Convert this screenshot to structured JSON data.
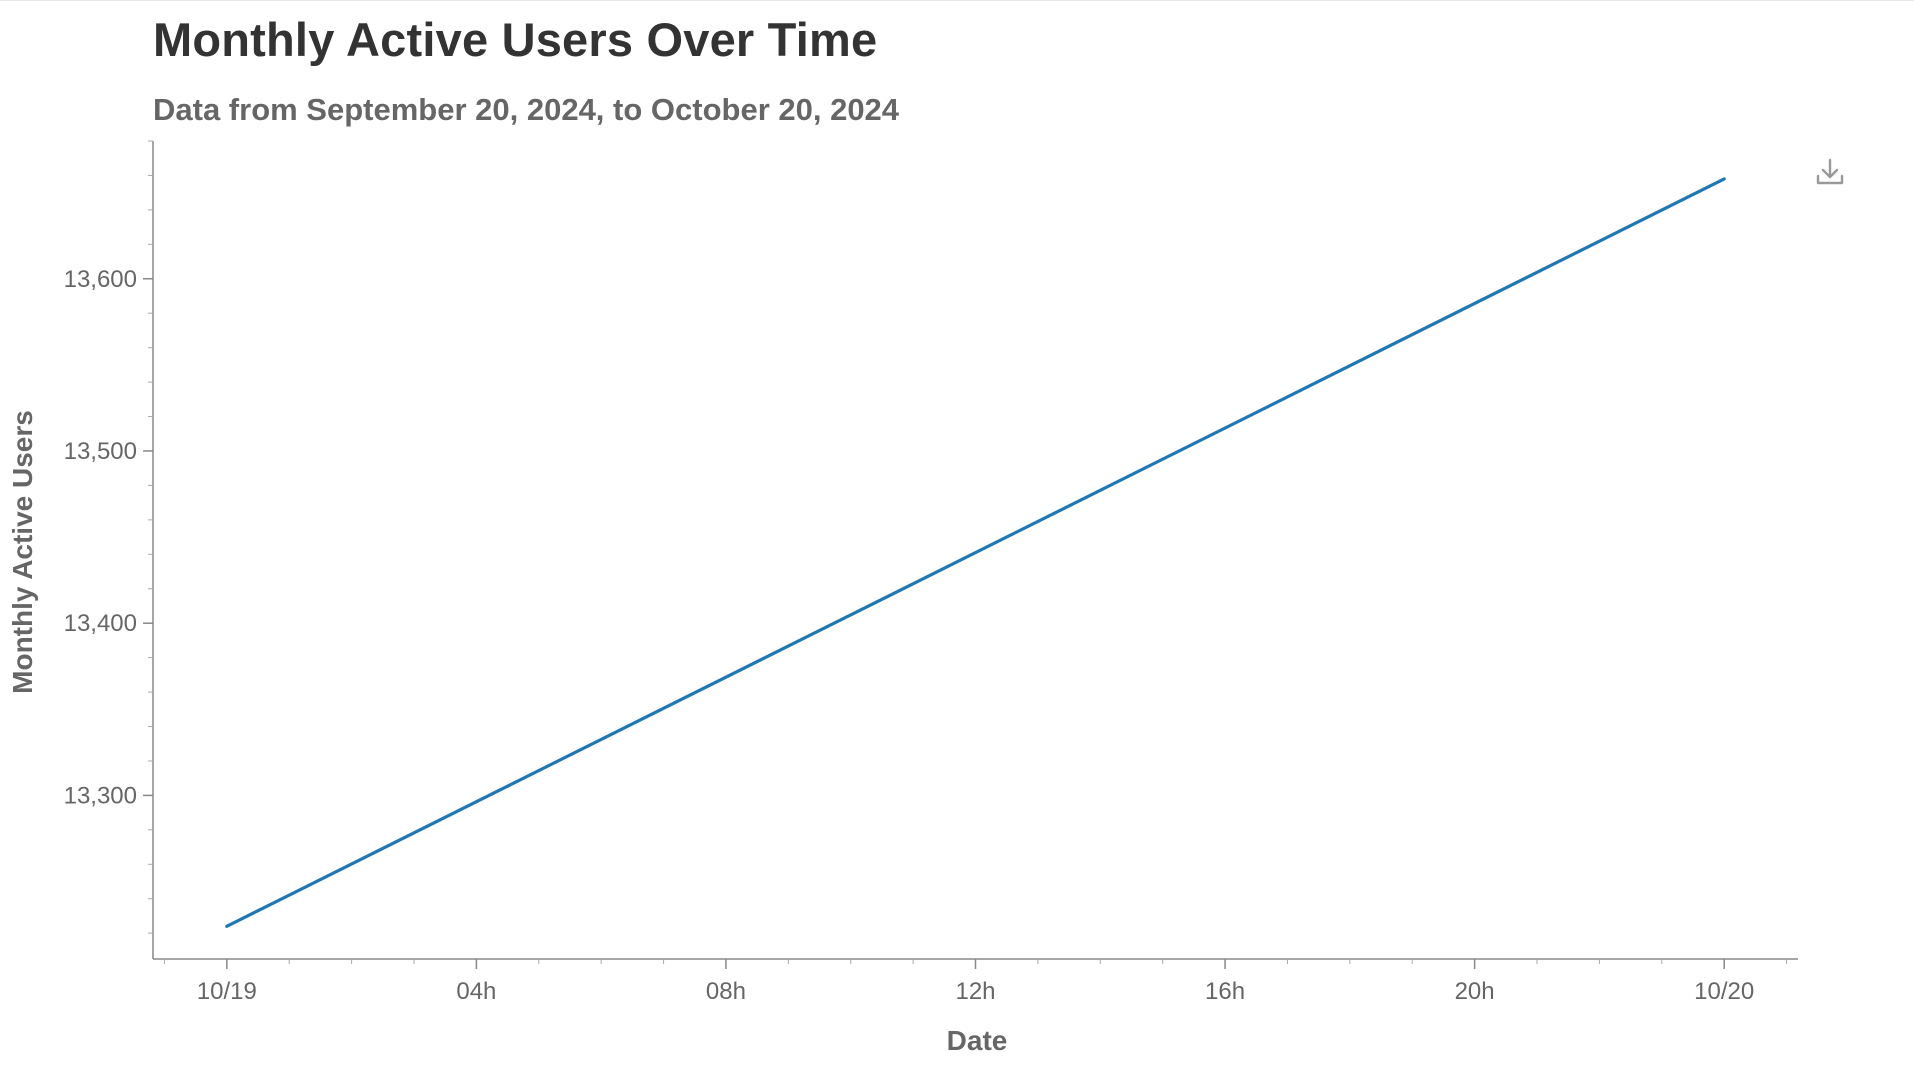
{
  "chart_data": {
    "type": "line",
    "title": "Monthly Active Users Over Time",
    "subtitle": "Data from September 20, 2024, to October 20, 2024",
    "xlabel": "Date",
    "ylabel": "Monthly Active Users",
    "x_tick_labels": [
      "10/19",
      "04h",
      "08h",
      "12h",
      "16h",
      "20h",
      "10/20"
    ],
    "y_ticks": [
      13300,
      13400,
      13500,
      13600
    ],
    "y_tick_labels": [
      "13,300",
      "13,400",
      "13,500",
      "13,600"
    ],
    "ylim": [
      13205,
      13680
    ],
    "xlim": [
      "2024-10-18T22:49",
      "2024-10-20T01:11"
    ],
    "grid": false,
    "series": [
      {
        "color": "#1f77b4",
        "x": [
          "2024-10-19T00:00",
          "2024-10-20T00:00"
        ],
        "y": [
          13224,
          13658
        ]
      }
    ]
  },
  "toolbar": {
    "download_icon": "download-icon"
  }
}
